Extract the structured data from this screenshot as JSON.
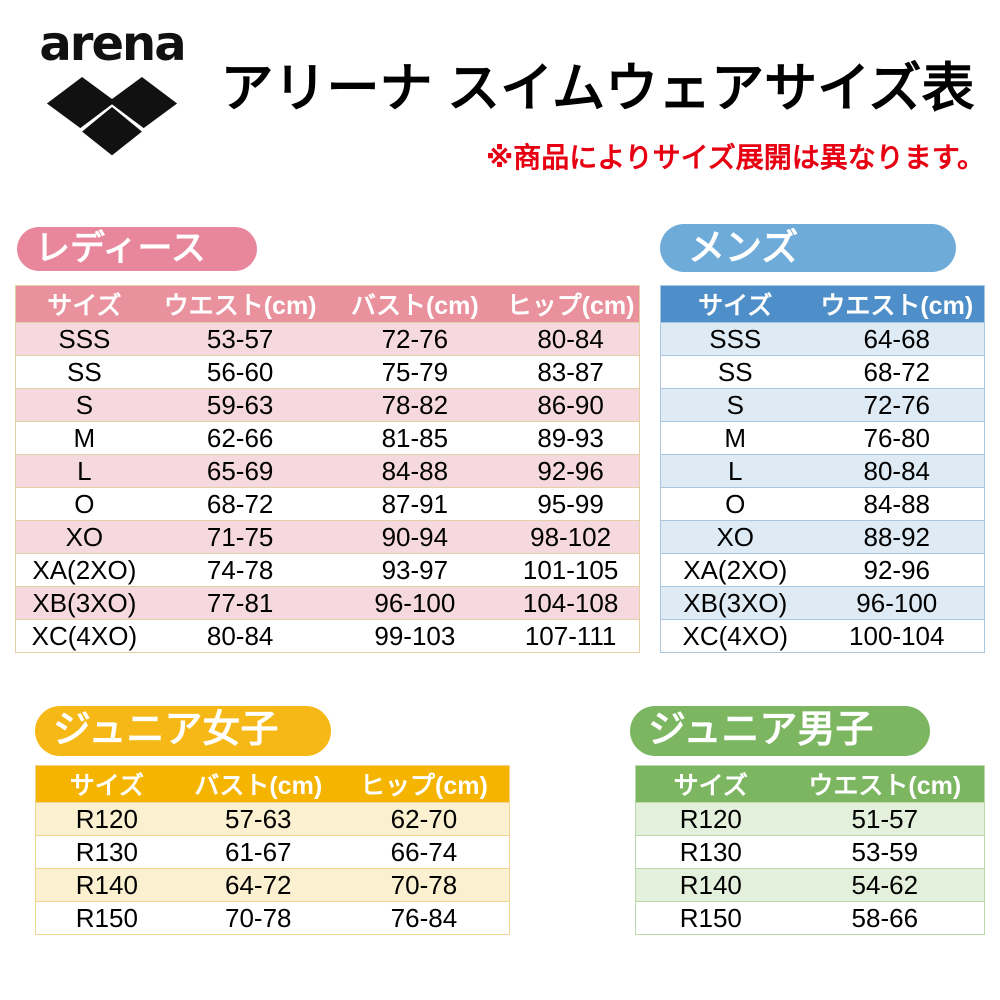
{
  "header": {
    "logo_text": "arena",
    "title": "アリーナ スイムウェアサイズ表",
    "note": "※商品によりサイズ展開は異なります。"
  },
  "tables": {
    "ladies": {
      "badge": "レディース",
      "columns": [
        "サイズ",
        "ウエスト(cm)",
        "バスト(cm)",
        "ヒップ(cm)"
      ],
      "rows": [
        [
          "SSS",
          "53-57",
          "72-76",
          "80-84"
        ],
        [
          "SS",
          "56-60",
          "75-79",
          "83-87"
        ],
        [
          "S",
          "59-63",
          "78-82",
          "86-90"
        ],
        [
          "M",
          "62-66",
          "81-85",
          "89-93"
        ],
        [
          "L",
          "65-69",
          "84-88",
          "92-96"
        ],
        [
          "O",
          "68-72",
          "87-91",
          "95-99"
        ],
        [
          "XO",
          "71-75",
          "90-94",
          "98-102"
        ],
        [
          "XA(2XO)",
          "74-78",
          "93-97",
          "101-105"
        ],
        [
          "XB(3XO)",
          "77-81",
          "96-100",
          "104-108"
        ],
        [
          "XC(4XO)",
          "80-84",
          "99-103",
          "107-111"
        ]
      ]
    },
    "mens": {
      "badge": "メンズ",
      "columns": [
        "サイズ",
        "ウエスト(cm)"
      ],
      "rows": [
        [
          "SSS",
          "64-68"
        ],
        [
          "SS",
          "68-72"
        ],
        [
          "S",
          "72-76"
        ],
        [
          "M",
          "76-80"
        ],
        [
          "L",
          "80-84"
        ],
        [
          "O",
          "84-88"
        ],
        [
          "XO",
          "88-92"
        ],
        [
          "XA(2XO)",
          "92-96"
        ],
        [
          "XB(3XO)",
          "96-100"
        ],
        [
          "XC(4XO)",
          "100-104"
        ]
      ]
    },
    "junior_girls": {
      "badge": "ジュニア女子",
      "columns": [
        "サイズ",
        "バスト(cm)",
        "ヒップ(cm)"
      ],
      "rows": [
        [
          "R120",
          "57-63",
          "62-70"
        ],
        [
          "R130",
          "61-67",
          "66-74"
        ],
        [
          "R140",
          "64-72",
          "70-78"
        ],
        [
          "R150",
          "70-78",
          "76-84"
        ]
      ]
    },
    "junior_boys": {
      "badge": "ジュニア男子",
      "columns": [
        "サイズ",
        "ウエスト(cm)"
      ],
      "rows": [
        [
          "R120",
          "51-57"
        ],
        [
          "R130",
          "53-59"
        ],
        [
          "R140",
          "54-62"
        ],
        [
          "R150",
          "58-66"
        ]
      ]
    }
  },
  "colors": {
    "ladies-badge": "#E8879B",
    "ladies-head": "#E9919C",
    "ladies-tint": "#F6D9DF",
    "ladies-border": "#E3CFA8",
    "mens-badge": "#6FABD9",
    "mens-head": "#4F8FC9",
    "mens-tint": "#DEEAF4",
    "mens-border": "#A9C7E0",
    "girls-badge": "#F6B817",
    "girls-head": "#F5B400",
    "girls-tint": "#FBF0D0",
    "girls-border": "#EFD494",
    "boys-badge": "#7CB661",
    "boys-head": "#7CB661",
    "boys-tint": "#E3F0DC",
    "boys-border": "#BCD9AC",
    "note-red": "#E60012",
    "logo-black": "#111111"
  }
}
